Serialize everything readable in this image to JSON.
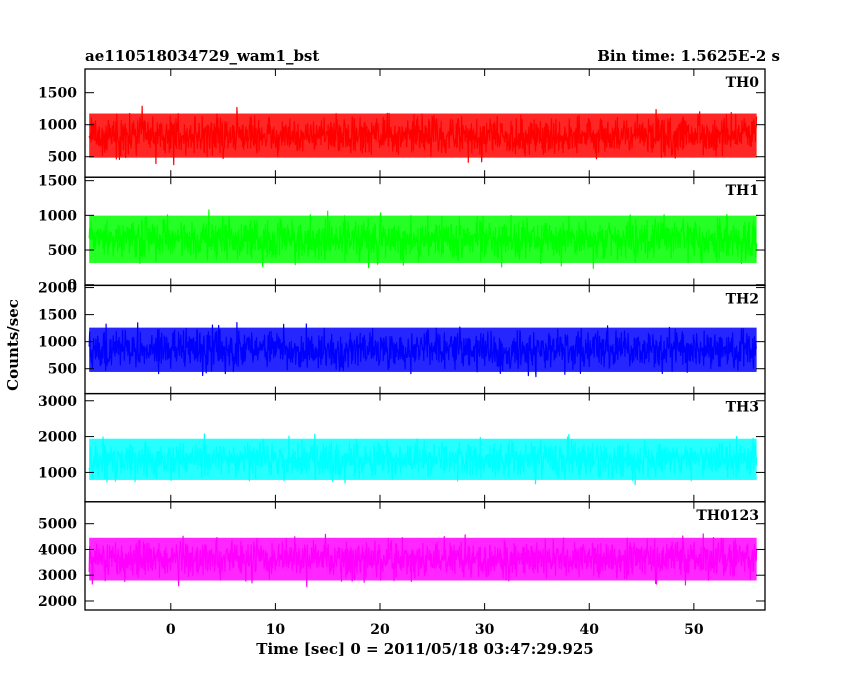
{
  "header": {
    "title": "ae110518034729_wam1_bst",
    "bin_time": "Bin time: 1.5625E-2 s"
  },
  "chart_data": {
    "type": "line",
    "ylabel": "Counts/sec",
    "xlabel": "Time [sec] 0 = 2011/05/18 03:47:29.925",
    "xlim": [
      -8.2,
      56.8
    ],
    "data_x_range": [
      -7.8,
      56.0
    ],
    "x_ticks": [
      0,
      10,
      20,
      30,
      40,
      50
    ],
    "x_tick_labels": [
      "0",
      "10",
      "20",
      "30",
      "40",
      "50"
    ],
    "grid": false,
    "panels": [
      {
        "name": "TH0",
        "color": "#ff0000",
        "ylim": [
          180,
          1870
        ],
        "y_ticks": [
          500,
          1000,
          1500
        ],
        "y_tick_labels": [
          "500",
          "1000",
          "1500"
        ],
        "typical_range": [
          300,
          1360
        ],
        "extreme_range": [
          200,
          1870
        ]
      },
      {
        "name": "TH1",
        "color": "#00ff00",
        "ylim": [
          -10,
          1550
        ],
        "y_ticks": [
          0,
          500,
          1000,
          1500
        ],
        "y_tick_labels": [
          "0",
          "500",
          "1000",
          "1500"
        ],
        "typical_range": [
          130,
          1180
        ],
        "extreme_range": [
          20,
          1530
        ]
      },
      {
        "name": "TH2",
        "color": "#0000ff",
        "ylim": [
          40,
          2040
        ],
        "y_ticks": [
          500,
          1000,
          1500,
          2000
        ],
        "y_tick_labels": [
          "500",
          "1000",
          "1500",
          "2000"
        ],
        "typical_range": [
          220,
          1480
        ],
        "extreme_range": [
          90,
          2000
        ]
      },
      {
        "name": "TH3",
        "color": "#00ffff",
        "ylim": [
          180,
          3200
        ],
        "y_ticks": [
          1000,
          2000,
          3000
        ],
        "y_tick_labels": [
          "1000",
          "2000",
          "3000"
        ],
        "typical_range": [
          480,
          2250
        ],
        "extreme_range": [
          260,
          3100
        ]
      },
      {
        "name": "TH0123",
        "color": "#ff00ff",
        "ylim": [
          1650,
          5850
        ],
        "y_ticks": [
          2000,
          3000,
          4000,
          5000
        ],
        "y_tick_labels": [
          "2000",
          "3000",
          "4000",
          "5000"
        ],
        "typical_range": [
          2350,
          4900
        ],
        "extreme_range": [
          1750,
          5700
        ]
      }
    ]
  }
}
